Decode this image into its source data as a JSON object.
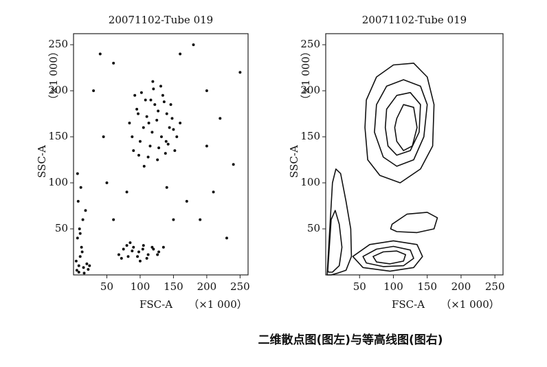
{
  "chart_data": [
    {
      "type": "scatter",
      "title": "20071102-Tube 019",
      "x_label": "FSC-A",
      "x_label_unit": "（×1 000）",
      "y_label": "SSC-A",
      "y_label_unit": "（×1 000）",
      "xlim": [
        0,
        262
      ],
      "ylim": [
        0,
        262
      ],
      "xticks": [
        50,
        100,
        150,
        200,
        250
      ],
      "yticks": [
        50,
        100,
        150,
        200,
        250
      ],
      "color": "#111111",
      "x": [
        95,
        110,
        125,
        140,
        105,
        118,
        132,
        150,
        88,
        100,
        115,
        128,
        142,
        155,
        92,
        108,
        122,
        136,
        148,
        98,
        112,
        126,
        138,
        84,
        102,
        120,
        134,
        146,
        160,
        90,
        106,
        119,
        131,
        144,
        97,
        113,
        127,
        139,
        152,
        116,
        68,
        75,
        82,
        90,
        98,
        105,
        112,
        120,
        128,
        135,
        72,
        80,
        88,
        96,
        104,
        110,
        118,
        126,
        85,
        100,
        5,
        8,
        10,
        12,
        6,
        9,
        14,
        18,
        7,
        11,
        15,
        20,
        4,
        8,
        13,
        22,
        10,
        6,
        16,
        24,
        40,
        60,
        180,
        200,
        220,
        240,
        50,
        170,
        190,
        210,
        230,
        150,
        60,
        45,
        250,
        30,
        160,
        80,
        200,
        140
      ],
      "y": [
        180,
        172,
        168,
        175,
        160,
        155,
        150,
        158,
        150,
        145,
        140,
        138,
        142,
        150,
        195,
        190,
        185,
        188,
        170,
        130,
        128,
        125,
        132,
        165,
        198,
        202,
        195,
        185,
        165,
        135,
        118,
        210,
        205,
        160,
        175,
        165,
        178,
        145,
        135,
        190,
        22,
        28,
        20,
        30,
        25,
        32,
        22,
        28,
        25,
        30,
        18,
        32,
        26,
        20,
        28,
        18,
        30,
        22,
        35,
        15,
        5,
        10,
        20,
        30,
        40,
        50,
        60,
        70,
        80,
        95,
        8,
        12,
        15,
        3,
        25,
        6,
        45,
        110,
        2,
        10,
        240,
        230,
        250,
        200,
        170,
        120,
        100,
        80,
        60,
        90,
        40,
        60,
        60,
        150,
        220,
        200,
        240,
        90,
        140,
        95
      ]
    },
    {
      "type": "contour",
      "title": "20071102-Tube 019",
      "x_label": "FSC-A",
      "x_label_unit": "（×1 000）",
      "y_label": "SSC-A",
      "y_label_unit": "（×1 000）",
      "xlim": [
        0,
        262
      ],
      "ylim": [
        0,
        262
      ],
      "xticks": [
        50,
        100,
        150,
        200,
        250
      ],
      "yticks": [
        50,
        100,
        150,
        200,
        250
      ],
      "color": "#111111",
      "contours": [
        {
          "x": [
            60,
            75,
            100,
            130,
            150,
            160,
            158,
            140,
            110,
            80,
            62,
            58
          ],
          "y": [
            190,
            215,
            228,
            230,
            215,
            185,
            140,
            115,
            100,
            108,
            125,
            160
          ]
        },
        {
          "x": [
            75,
            90,
            115,
            140,
            150,
            145,
            130,
            105,
            85,
            72
          ],
          "y": [
            185,
            205,
            212,
            205,
            185,
            150,
            125,
            118,
            128,
            155
          ]
        },
        {
          "x": [
            90,
            105,
            125,
            140,
            138,
            125,
            105,
            92,
            88
          ],
          "y": [
            180,
            195,
            198,
            185,
            155,
            135,
            130,
            140,
            160
          ]
        },
        {
          "x": [
            105,
            115,
            130,
            135,
            128,
            115,
            105,
            102
          ],
          "y": [
            170,
            185,
            182,
            160,
            140,
            135,
            145,
            160
          ]
        },
        {
          "x": [
            98,
            120,
            150,
            165,
            160,
            135,
            105,
            96
          ],
          "y": [
            55,
            66,
            68,
            62,
            50,
            46,
            47,
            50
          ]
        },
        {
          "x": [
            40,
            65,
            100,
            135,
            143,
            130,
            95,
            55
          ],
          "y": [
            20,
            33,
            37,
            33,
            20,
            8,
            4,
            8
          ]
        },
        {
          "x": [
            55,
            75,
            100,
            125,
            130,
            115,
            85,
            60
          ],
          "y": [
            20,
            28,
            31,
            27,
            18,
            10,
            9,
            13
          ]
        },
        {
          "x": [
            70,
            85,
            105,
            118,
            115,
            95,
            75
          ],
          "y": [
            20,
            25,
            26,
            22,
            15,
            12,
            14
          ]
        },
        {
          "x": [
            2,
            10,
            15,
            22,
            30,
            37,
            38,
            30,
            18,
            8
          ],
          "y": [
            0,
            100,
            115,
            110,
            80,
            50,
            20,
            5,
            2,
            0
          ]
        },
        {
          "x": [
            3,
            8,
            14,
            20,
            24,
            20,
            10,
            4
          ],
          "y": [
            5,
            60,
            70,
            55,
            30,
            10,
            3,
            3
          ]
        }
      ]
    }
  ],
  "caption": "二维散点图(图左)与等高线图(图右)"
}
